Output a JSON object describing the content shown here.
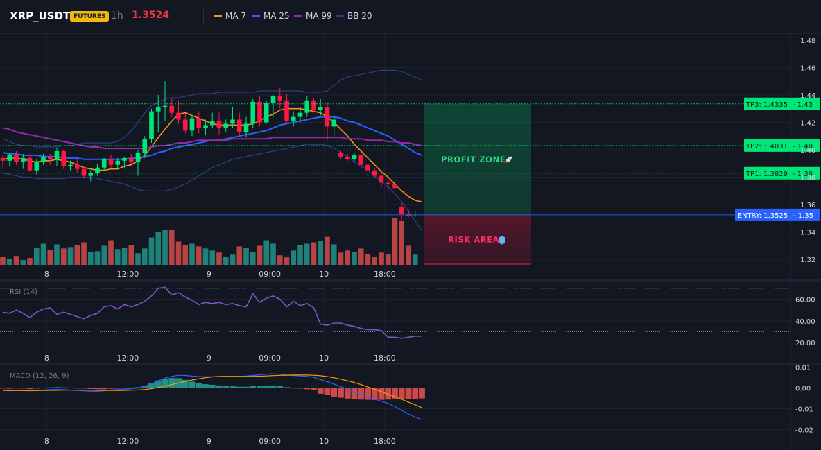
{
  "header": {
    "symbol": "XRP_USDT",
    "badge": "FUTURES",
    "timeframe": "1h",
    "price": "1.3524",
    "legend": [
      {
        "label": "MA 7",
        "color": "#f7931a"
      },
      {
        "label": "MA 25",
        "color": "#2962ff"
      },
      {
        "label": "MA 99",
        "color": "#9c27b0"
      },
      {
        "label": "BB 20",
        "color": "#2b3f87"
      }
    ]
  },
  "colors": {
    "up": "#26a69a",
    "down": "#ef5350",
    "candle_up": "#00e676",
    "candle_down": "#ff1744"
  },
  "chart_data": [
    {
      "type": "candlestick",
      "x_ticks": [
        "8",
        "12:00",
        "9",
        "09:00",
        "10",
        "18:00"
      ],
      "x_tick_index": [
        6,
        18,
        30,
        39,
        47,
        56
      ],
      "y_ticks": [
        "1.48",
        "1.46",
        "1.44",
        "1.42",
        "1.40",
        "1.38",
        "1.36",
        "1.34",
        "1.32"
      ],
      "ylim": [
        1.315,
        1.485
      ],
      "candles": [
        {
          "o": 1.394,
          "h": 1.396,
          "l": 1.386,
          "c": 1.392
        },
        {
          "o": 1.392,
          "h": 1.398,
          "l": 1.388,
          "c": 1.396
        },
        {
          "o": 1.396,
          "h": 1.399,
          "l": 1.389,
          "c": 1.391
        },
        {
          "o": 1.391,
          "h": 1.397,
          "l": 1.386,
          "c": 1.394
        },
        {
          "o": 1.394,
          "h": 1.396,
          "l": 1.384,
          "c": 1.385
        },
        {
          "o": 1.385,
          "h": 1.393,
          "l": 1.382,
          "c": 1.391
        },
        {
          "o": 1.391,
          "h": 1.397,
          "l": 1.389,
          "c": 1.395
        },
        {
          "o": 1.395,
          "h": 1.397,
          "l": 1.389,
          "c": 1.393
        },
        {
          "o": 1.393,
          "h": 1.401,
          "l": 1.388,
          "c": 1.399
        },
        {
          "o": 1.399,
          "h": 1.4,
          "l": 1.386,
          "c": 1.388
        },
        {
          "o": 1.388,
          "h": 1.392,
          "l": 1.385,
          "c": 1.389
        },
        {
          "o": 1.389,
          "h": 1.393,
          "l": 1.383,
          "c": 1.386
        },
        {
          "o": 1.386,
          "h": 1.388,
          "l": 1.379,
          "c": 1.381
        },
        {
          "o": 1.381,
          "h": 1.385,
          "l": 1.377,
          "c": 1.383
        },
        {
          "o": 1.383,
          "h": 1.39,
          "l": 1.381,
          "c": 1.387
        },
        {
          "o": 1.387,
          "h": 1.394,
          "l": 1.385,
          "c": 1.393
        },
        {
          "o": 1.393,
          "h": 1.396,
          "l": 1.387,
          "c": 1.389
        },
        {
          "o": 1.389,
          "h": 1.394,
          "l": 1.386,
          "c": 1.392
        },
        {
          "o": 1.392,
          "h": 1.395,
          "l": 1.387,
          "c": 1.394
        },
        {
          "o": 1.394,
          "h": 1.397,
          "l": 1.39,
          "c": 1.391
        },
        {
          "o": 1.391,
          "h": 1.4,
          "l": 1.381,
          "c": 1.398
        },
        {
          "o": 1.398,
          "h": 1.41,
          "l": 1.394,
          "c": 1.408
        },
        {
          "o": 1.408,
          "h": 1.43,
          "l": 1.405,
          "c": 1.428
        },
        {
          "o": 1.428,
          "h": 1.44,
          "l": 1.413,
          "c": 1.431
        },
        {
          "o": 1.431,
          "h": 1.45,
          "l": 1.421,
          "c": 1.432
        },
        {
          "o": 1.432,
          "h": 1.438,
          "l": 1.424,
          "c": 1.427
        },
        {
          "o": 1.427,
          "h": 1.436,
          "l": 1.419,
          "c": 1.422
        },
        {
          "o": 1.422,
          "h": 1.426,
          "l": 1.412,
          "c": 1.414
        },
        {
          "o": 1.414,
          "h": 1.425,
          "l": 1.41,
          "c": 1.423
        },
        {
          "o": 1.423,
          "h": 1.428,
          "l": 1.412,
          "c": 1.416
        },
        {
          "o": 1.416,
          "h": 1.422,
          "l": 1.411,
          "c": 1.418
        },
        {
          "o": 1.418,
          "h": 1.427,
          "l": 1.416,
          "c": 1.421
        },
        {
          "o": 1.421,
          "h": 1.427,
          "l": 1.411,
          "c": 1.416
        },
        {
          "o": 1.416,
          "h": 1.422,
          "l": 1.413,
          "c": 1.419
        },
        {
          "o": 1.419,
          "h": 1.431,
          "l": 1.416,
          "c": 1.422
        },
        {
          "o": 1.422,
          "h": 1.427,
          "l": 1.41,
          "c": 1.413
        },
        {
          "o": 1.413,
          "h": 1.424,
          "l": 1.409,
          "c": 1.419
        },
        {
          "o": 1.419,
          "h": 1.437,
          "l": 1.416,
          "c": 1.435
        },
        {
          "o": 1.435,
          "h": 1.439,
          "l": 1.417,
          "c": 1.42
        },
        {
          "o": 1.42,
          "h": 1.436,
          "l": 1.419,
          "c": 1.434
        },
        {
          "o": 1.434,
          "h": 1.44,
          "l": 1.424,
          "c": 1.439
        },
        {
          "o": 1.439,
          "h": 1.445,
          "l": 1.43,
          "c": 1.436
        },
        {
          "o": 1.436,
          "h": 1.441,
          "l": 1.419,
          "c": 1.421
        },
        {
          "o": 1.421,
          "h": 1.428,
          "l": 1.417,
          "c": 1.424
        },
        {
          "o": 1.424,
          "h": 1.431,
          "l": 1.42,
          "c": 1.427
        },
        {
          "o": 1.427,
          "h": 1.439,
          "l": 1.424,
          "c": 1.436
        },
        {
          "o": 1.436,
          "h": 1.438,
          "l": 1.427,
          "c": 1.429
        },
        {
          "o": 1.429,
          "h": 1.437,
          "l": 1.425,
          "c": 1.431
        },
        {
          "o": 1.431,
          "h": 1.435,
          "l": 1.407,
          "c": 1.417
        },
        {
          "o": 1.417,
          "h": 1.425,
          "l": 1.41,
          "c": 1.422
        },
        {
          "o": 1.398,
          "h": 1.399,
          "l": 1.393,
          "c": 1.395
        },
        {
          "o": 1.395,
          "h": 1.397,
          "l": 1.392,
          "c": 1.393
        },
        {
          "o": 1.393,
          "h": 1.398,
          "l": 1.391,
          "c": 1.396
        },
        {
          "o": 1.396,
          "h": 1.398,
          "l": 1.387,
          "c": 1.389
        },
        {
          "o": 1.389,
          "h": 1.394,
          "l": 1.376,
          "c": 1.385
        },
        {
          "o": 1.385,
          "h": 1.387,
          "l": 1.379,
          "c": 1.381
        },
        {
          "o": 1.381,
          "h": 1.385,
          "l": 1.373,
          "c": 1.376
        },
        {
          "o": 1.376,
          "h": 1.38,
          "l": 1.368,
          "c": 1.375
        },
        {
          "o": 1.375,
          "h": 1.378,
          "l": 1.371,
          "c": 1.372
        },
        {
          "o": 1.358,
          "h": 1.361,
          "l": 1.349,
          "c": 1.353
        },
        {
          "o": 1.353,
          "h": 1.357,
          "l": 1.35,
          "c": 1.352
        },
        {
          "o": 1.352,
          "h": 1.355,
          "l": 1.351,
          "c": 1.352
        }
      ],
      "volume": [
        12,
        9,
        13,
        7,
        10,
        25,
        31,
        22,
        30,
        24,
        26,
        29,
        33,
        19,
        20,
        28,
        36,
        23,
        25,
        29,
        17,
        24,
        40,
        48,
        51,
        51,
        34,
        29,
        31,
        27,
        24,
        21,
        18,
        12,
        15,
        27,
        25,
        19,
        28,
        36,
        31,
        14,
        11,
        21,
        29,
        31,
        33,
        35,
        41,
        30,
        18,
        21,
        19,
        24,
        16,
        12,
        18,
        16,
        69,
        64,
        28,
        15,
        9
      ],
      "overlays": [
        {
          "label": "MA 7",
          "values": [
            1.393,
            1.394,
            1.394,
            1.393,
            1.392,
            1.391,
            1.392,
            1.392,
            1.393,
            1.392,
            1.391,
            1.389,
            1.387,
            1.386,
            1.385,
            1.385,
            1.386,
            1.386,
            1.388,
            1.389,
            1.392,
            1.396,
            1.402,
            1.409,
            1.415,
            1.421,
            1.426,
            1.427,
            1.425,
            1.423,
            1.421,
            1.419,
            1.418,
            1.418,
            1.418,
            1.418,
            1.418,
            1.419,
            1.421,
            1.424,
            1.426,
            1.429,
            1.43,
            1.43,
            1.43,
            1.429,
            1.428,
            1.427,
            1.424,
            1.42,
            1.415,
            1.41,
            1.404,
            1.399,
            1.394,
            1.389,
            1.384,
            1.38,
            1.375,
            1.37,
            1.366,
            1.363,
            1.362
          ]
        },
        {
          "label": "MA 25",
          "values": [
            1.398,
            1.397,
            1.397,
            1.396,
            1.396,
            1.396,
            1.395,
            1.395,
            1.395,
            1.394,
            1.394,
            1.394,
            1.393,
            1.393,
            1.393,
            1.393,
            1.393,
            1.393,
            1.393,
            1.394,
            1.394,
            1.395,
            1.396,
            1.398,
            1.399,
            1.401,
            1.402,
            1.403,
            1.404,
            1.405,
            1.406,
            1.407,
            1.407,
            1.408,
            1.409,
            1.41,
            1.411,
            1.412,
            1.413,
            1.414,
            1.416,
            1.418,
            1.419,
            1.42,
            1.421,
            1.422,
            1.423,
            1.424,
            1.424,
            1.424,
            1.423,
            1.421,
            1.42,
            1.418,
            1.416,
            1.414,
            1.412,
            1.41,
            1.407,
            1.404,
            1.401,
            1.398,
            1.396
          ]
        },
        {
          "label": "MA 99",
          "values": [
            1.416,
            1.415,
            1.413,
            1.412,
            1.411,
            1.41,
            1.409,
            1.408,
            1.407,
            1.406,
            1.405,
            1.404,
            1.403,
            1.402,
            1.402,
            1.401,
            1.401,
            1.401,
            1.401,
            1.401,
            1.401,
            1.401,
            1.402,
            1.403,
            1.403,
            1.404,
            1.405,
            1.405,
            1.406,
            1.407,
            1.407,
            1.407,
            1.407,
            1.407,
            1.408,
            1.408,
            1.408,
            1.408,
            1.408,
            1.408,
            1.409,
            1.409,
            1.409,
            1.409,
            1.409,
            1.409,
            1.409,
            1.409,
            1.409,
            1.409,
            1.409,
            1.408,
            1.408,
            1.408,
            1.407,
            1.407,
            1.407,
            1.406,
            1.406,
            1.405,
            1.405,
            1.404,
            1.403
          ]
        },
        {
          "label": "BB 20",
          "band": "upper",
          "values": [
            1.408,
            1.406,
            1.404,
            1.403,
            1.403,
            1.402,
            1.402,
            1.402,
            1.402,
            1.403,
            1.403,
            1.404,
            1.405,
            1.405,
            1.405,
            1.405,
            1.405,
            1.406,
            1.409,
            1.414,
            1.42,
            1.427,
            1.432,
            1.435,
            1.437,
            1.438,
            1.438,
            1.439,
            1.44,
            1.441,
            1.441,
            1.441,
            1.442,
            1.442,
            1.442,
            1.442,
            1.442,
            1.442,
            1.443,
            1.443,
            1.443,
            1.443,
            1.443,
            1.443,
            1.443,
            1.442,
            1.442,
            1.442,
            1.443,
            1.447,
            1.451,
            1.453,
            1.454,
            1.455,
            1.456,
            1.457,
            1.458,
            1.458,
            1.458,
            1.457,
            1.455,
            1.453,
            1.451
          ]
        },
        {
          "label": "BB 20",
          "band": "lower",
          "values": [
            1.383,
            1.382,
            1.381,
            1.38,
            1.38,
            1.379,
            1.379,
            1.379,
            1.379,
            1.379,
            1.38,
            1.38,
            1.38,
            1.38,
            1.379,
            1.378,
            1.377,
            1.376,
            1.375,
            1.373,
            1.371,
            1.37,
            1.37,
            1.37,
            1.37,
            1.371,
            1.373,
            1.375,
            1.378,
            1.381,
            1.384,
            1.387,
            1.389,
            1.391,
            1.393,
            1.394,
            1.395,
            1.396,
            1.397,
            1.398,
            1.399,
            1.4,
            1.401,
            1.402,
            1.403,
            1.404,
            1.404,
            1.404,
            1.403,
            1.401,
            1.398,
            1.395,
            1.391,
            1.388,
            1.385,
            1.381,
            1.377,
            1.373,
            1.368,
            1.362,
            1.355,
            1.348,
            1.341
          ]
        }
      ],
      "levels": [
        {
          "name": "TP3",
          "label": "TP3: 1.4335",
          "axis": "1.43",
          "value": 1.4335,
          "color": "#00e676"
        },
        {
          "name": "TP2",
          "label": "TP2: 1.4031",
          "axis": "1.40",
          "value": 1.4031,
          "color": "#00e676"
        },
        {
          "name": "TP1",
          "label": "TP1: 1.3829",
          "axis": "1.38",
          "value": 1.3829,
          "color": "#00e676"
        },
        {
          "name": "ENTRY",
          "label": "ENTRY: 1.3525",
          "axis": "1.35",
          "value": 1.3525,
          "color": "#2962ff"
        }
      ],
      "zones": [
        {
          "label": "PROFIT ZONE",
          "icon": "rocket-icon",
          "from": 1.3525,
          "to": 1.4335,
          "color": "#00e676"
        },
        {
          "label": "RISK AREA",
          "icon": "shield-icon",
          "from": 1.3525,
          "to": 1.3165,
          "color": "#ff1744"
        }
      ]
    },
    {
      "type": "line",
      "title": "RSI (14)",
      "y_ticks": [
        "60.00",
        "40.00",
        "20.00"
      ],
      "ylim": [
        15,
        75
      ],
      "bands": [
        70,
        30
      ],
      "values": [
        48,
        47,
        50,
        47,
        43,
        48,
        51,
        52,
        46,
        48,
        46,
        44,
        42,
        45,
        47,
        53,
        54,
        51,
        55,
        53,
        55,
        58,
        63,
        70,
        71,
        64,
        66,
        62,
        59,
        55,
        57,
        56,
        57,
        55,
        56,
        54,
        53,
        65,
        57,
        61,
        63,
        60,
        53,
        58,
        54,
        56,
        52,
        37,
        36,
        38,
        38,
        36,
        35,
        33,
        32,
        32,
        31,
        25,
        25,
        24,
        25,
        26,
        26
      ]
    },
    {
      "type": "bar",
      "title": "MACD (12, 26, 9)",
      "y_ticks": [
        "0.01",
        "0.00",
        "-0.01",
        "-0.02"
      ],
      "ylim": [
        -0.0205,
        0.0105
      ],
      "histogram": [
        -0.0003,
        -0.0004,
        -0.0002,
        -0.0003,
        -0.0005,
        -0.0003,
        0.0002,
        0.0003,
        0.0004,
        0.0003,
        0.0002,
        -0.0002,
        -0.0003,
        -0.0005,
        -0.0006,
        -0.0006,
        -0.0004,
        -0.0003,
        -0.0002,
        -0.0001,
        0.0004,
        0.0009,
        0.0022,
        0.0036,
        0.0044,
        0.0048,
        0.0047,
        0.0039,
        0.003,
        0.0023,
        0.0018,
        0.0015,
        0.0012,
        0.001,
        0.0008,
        0.0006,
        0.0006,
        0.0009,
        0.0008,
        0.001,
        0.0012,
        0.001,
        0.0004,
        0.0,
        -0.0003,
        -0.0006,
        -0.001,
        -0.0028,
        -0.0035,
        -0.0042,
        -0.0047,
        -0.0051,
        -0.0054,
        -0.0056,
        -0.0057,
        -0.0058,
        -0.0057,
        -0.0056,
        -0.0055,
        -0.0054,
        -0.0053,
        -0.0052,
        -0.005
      ],
      "macd": [
        -0.0012,
        -0.0013,
        -0.0012,
        -0.0013,
        -0.0014,
        -0.0012,
        -0.001,
        -0.0008,
        -0.0007,
        -0.0008,
        -0.001,
        -0.0012,
        -0.0014,
        -0.0016,
        -0.0016,
        -0.0014,
        -0.001,
        -0.0008,
        -0.0006,
        -0.0004,
        0.0,
        0.0008,
        0.002,
        0.0035,
        0.0047,
        0.0056,
        0.0061,
        0.006,
        0.0057,
        0.0055,
        0.0054,
        0.0054,
        0.0054,
        0.0054,
        0.0055,
        0.0056,
        0.0057,
        0.006,
        0.0063,
        0.0066,
        0.0068,
        0.0066,
        0.0062,
        0.006,
        0.0058,
        0.0056,
        0.0051,
        0.004,
        0.003,
        0.0018,
        0.0006,
        -0.0006,
        -0.002,
        -0.0032,
        -0.0044,
        -0.0054,
        -0.0064,
        -0.0074,
        -0.009,
        -0.0108,
        -0.0125,
        -0.014,
        -0.0152
      ]
    }
  ]
}
